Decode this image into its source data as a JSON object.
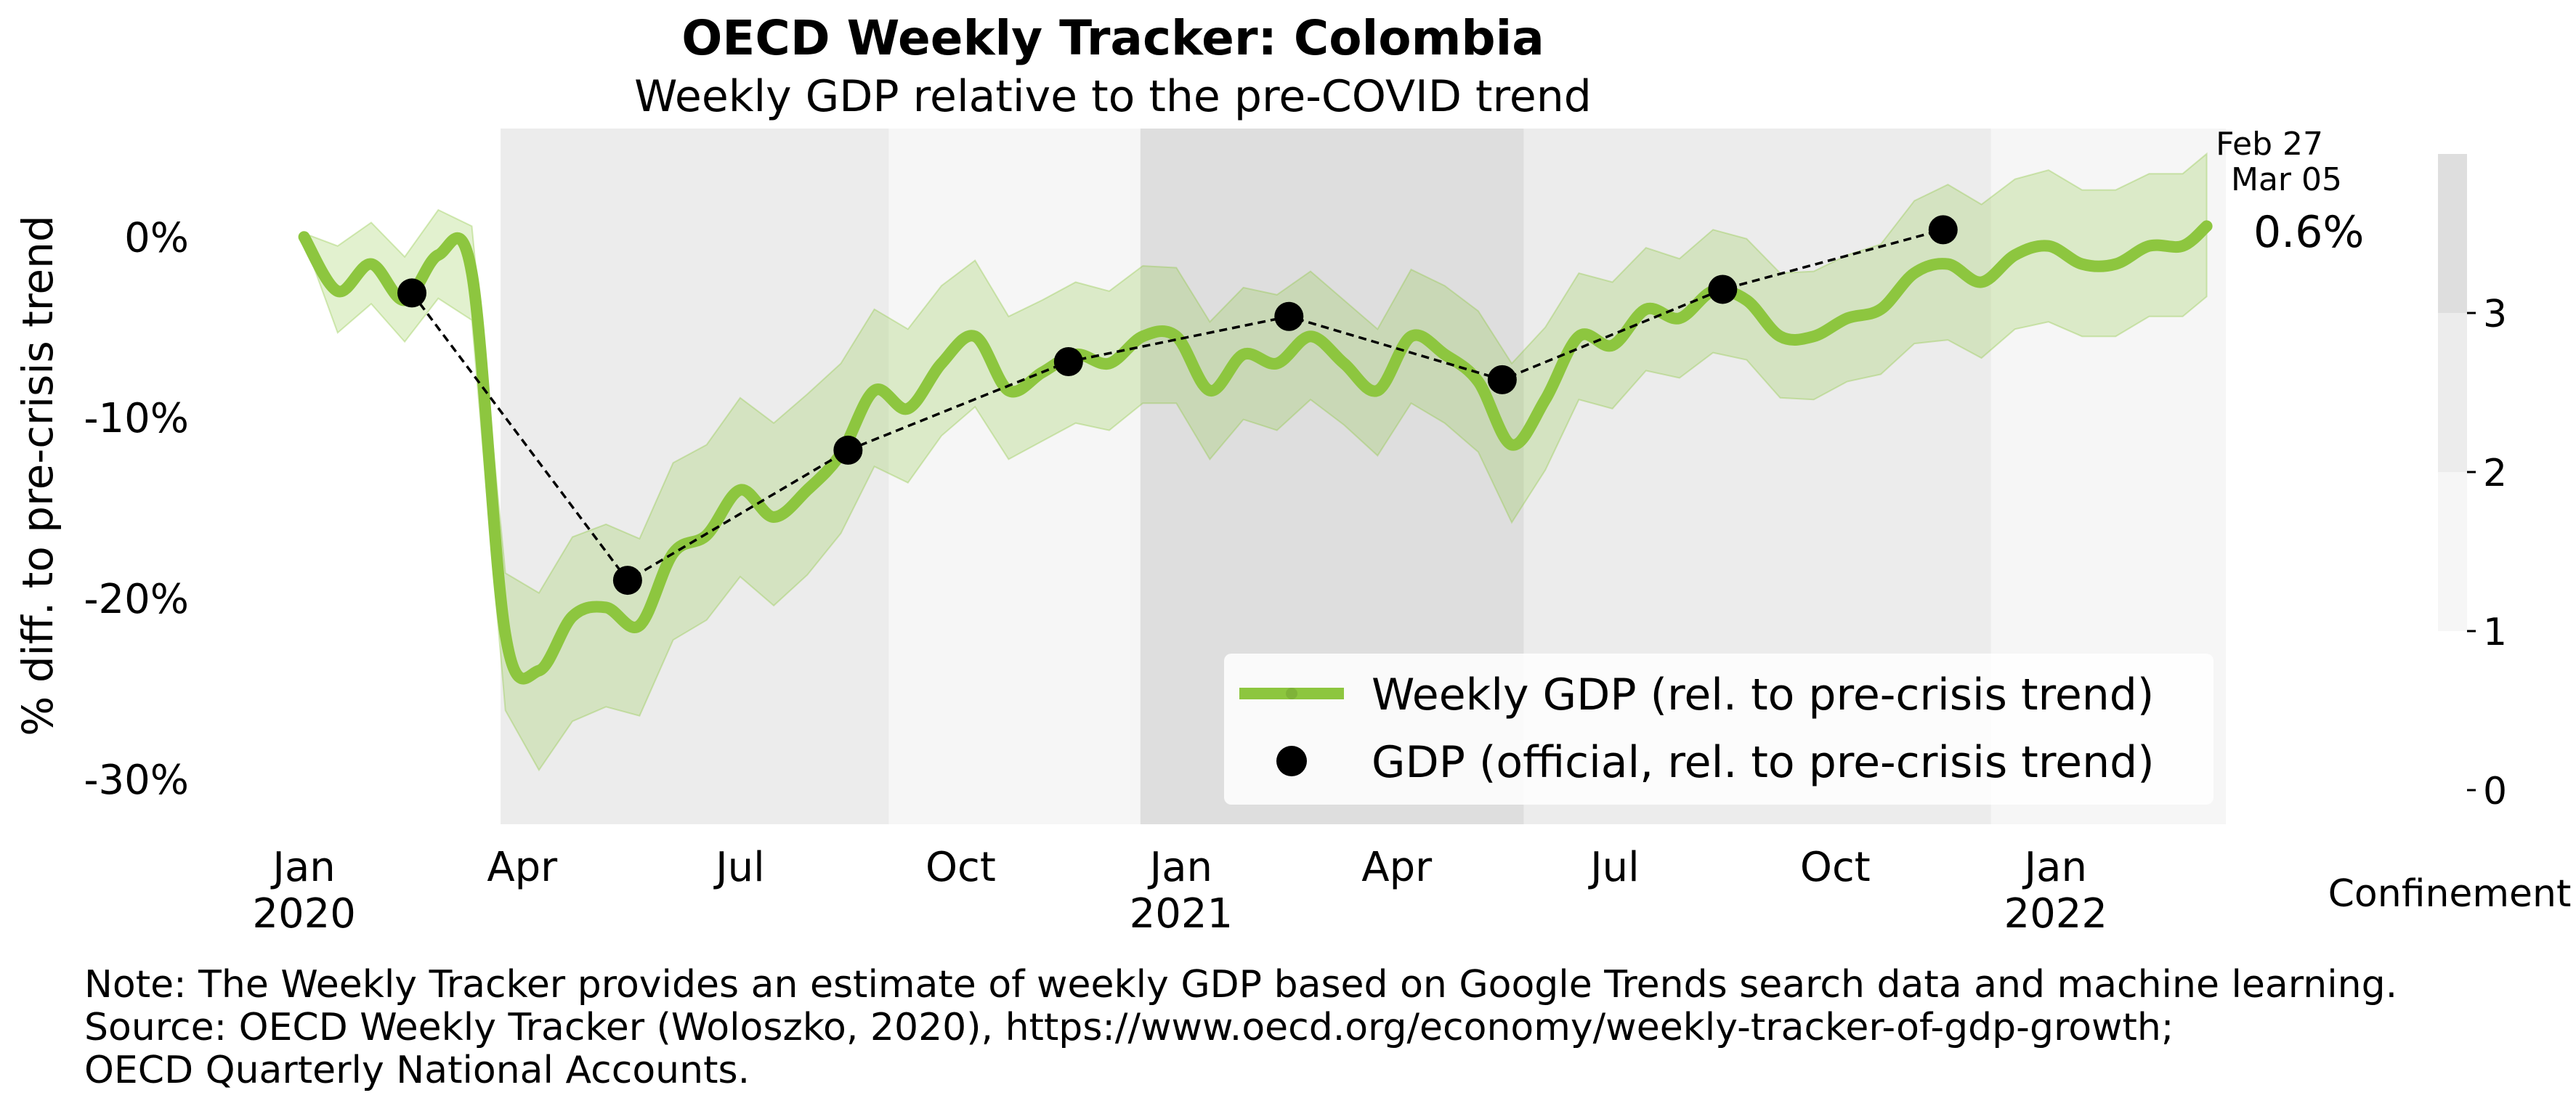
{
  "chart_data": {
    "type": "line",
    "title": "OECD Weekly Tracker: Colombia",
    "subtitle": "Weekly GDP relative to the pre-COVID trend",
    "ylabel": "% diff. to pre-crisis trend",
    "xlabel": "",
    "ylim": [
      -32.5,
      6
    ],
    "xlim": [
      "2019-12-30",
      "2022-03-13"
    ],
    "y_ticks": [
      {
        "value": 0,
        "label": "0%"
      },
      {
        "value": -10,
        "label": "-10%"
      },
      {
        "value": -20,
        "label": "-20%"
      },
      {
        "value": -30,
        "label": "-30%"
      }
    ],
    "x_ticks": [
      {
        "date": "2020-01-01",
        "line1": "Jan",
        "line2": "2020"
      },
      {
        "date": "2020-04-01",
        "line1": "Apr",
        "line2": ""
      },
      {
        "date": "2020-07-01",
        "line1": "Jul",
        "line2": ""
      },
      {
        "date": "2020-10-01",
        "line1": "Oct",
        "line2": ""
      },
      {
        "date": "2021-01-01",
        "line1": "Jan",
        "line2": "2021"
      },
      {
        "date": "2021-04-01",
        "line1": "Apr",
        "line2": ""
      },
      {
        "date": "2021-07-01",
        "line1": "Jul",
        "line2": ""
      },
      {
        "date": "2021-10-01",
        "line1": "Oct",
        "line2": ""
      },
      {
        "date": "2022-01-01",
        "line1": "Jan",
        "line2": "2022"
      }
    ],
    "series": [
      {
        "name": "Weekly GDP (rel. to pre-crisis trend)",
        "color": "#8dc63f",
        "x": [
          "2020-01-01",
          "2020-01-15",
          "2020-01-29",
          "2020-02-12",
          "2020-02-26",
          "2020-03-11",
          "2020-03-25",
          "2020-04-08",
          "2020-04-22",
          "2020-05-06",
          "2020-05-20",
          "2020-06-03",
          "2020-06-17",
          "2020-07-01",
          "2020-07-15",
          "2020-07-29",
          "2020-08-12",
          "2020-08-26",
          "2020-09-09",
          "2020-09-23",
          "2020-10-07",
          "2020-10-21",
          "2020-11-04",
          "2020-11-18",
          "2020-12-02",
          "2020-12-16",
          "2020-12-30",
          "2021-01-13",
          "2021-01-27",
          "2021-02-10",
          "2021-02-24",
          "2021-03-10",
          "2021-03-24",
          "2021-04-07",
          "2021-04-21",
          "2021-05-05",
          "2021-05-19",
          "2021-06-02",
          "2021-06-16",
          "2021-06-30",
          "2021-07-14",
          "2021-07-28",
          "2021-08-11",
          "2021-08-25",
          "2021-09-08",
          "2021-09-22",
          "2021-10-06",
          "2021-10-20",
          "2021-11-03",
          "2021-11-17",
          "2021-12-01",
          "2021-12-15",
          "2021-12-29",
          "2022-01-12",
          "2022-01-26",
          "2022-02-09",
          "2022-02-23",
          "2022-03-05"
        ],
        "values": [
          0.0,
          -3.0,
          -1.5,
          -3.5,
          -1.0,
          -2.0,
          -22.0,
          -24.0,
          -21.0,
          -20.5,
          -21.5,
          -17.5,
          -16.5,
          -14.0,
          -15.5,
          -14.0,
          -12.0,
          -8.5,
          -9.5,
          -7.0,
          -5.5,
          -8.5,
          -7.5,
          -6.5,
          -7.0,
          -5.5,
          -5.5,
          -8.5,
          -6.5,
          -7.0,
          -5.5,
          -7.0,
          -8.5,
          -5.5,
          -6.5,
          -8.0,
          -11.5,
          -9.0,
          -5.5,
          -6.0,
          -4.0,
          -4.5,
          -3.0,
          -3.5,
          -5.5,
          -5.5,
          -4.5,
          -4.0,
          -2.0,
          -1.5,
          -2.5,
          -1.0,
          -0.5,
          -1.5,
          -1.5,
          -0.5,
          -0.5,
          0.6
        ]
      },
      {
        "name": "GDP (official, rel. to pre-crisis trend)",
        "color": "#000000",
        "x": [
          "2020-02-15",
          "2020-05-15",
          "2020-08-15",
          "2020-11-15",
          "2021-02-15",
          "2021-05-15",
          "2021-08-15",
          "2021-11-15"
        ],
        "values": [
          -3.1,
          -19.0,
          -11.8,
          -6.9,
          -4.4,
          -7.9,
          -2.9,
          0.4
        ]
      }
    ],
    "confidence_band": {
      "offsets_upper": [
        0.2,
        2.5,
        2.3,
        2.4,
        2.5,
        2.6,
        3.4,
        4.3,
        4.4,
        4.6,
        4.8,
        5.0,
        5.0,
        5.1,
        5.2,
        5.3,
        5.0,
        4.5,
        4.4,
        4.3,
        4.2,
        4.1,
        4.0,
        4.0,
        4.0,
        3.9,
        3.8,
        3.8,
        3.7,
        3.8,
        3.6,
        3.5,
        3.4,
        3.7,
        3.8,
        3.9,
        4.5,
        4.0,
        3.5,
        3.5,
        3.4,
        3.3,
        3.4,
        3.4,
        3.5,
        3.6,
        3.5,
        3.6,
        4.0,
        4.4,
        4.3,
        4.2,
        4.2,
        4.1,
        4.1,
        4.0,
        4.0,
        4.0
      ],
      "offsets_lower": [
        0.2,
        2.3,
        2.2,
        2.3,
        2.4,
        2.6,
        4.2,
        5.5,
        5.8,
        5.5,
        5.0,
        4.8,
        4.7,
        4.8,
        4.9,
        4.7,
        4.4,
        4.2,
        4.1,
        4.0,
        3.9,
        3.8,
        3.8,
        3.8,
        3.7,
        3.7,
        3.7,
        3.8,
        3.6,
        3.7,
        3.5,
        3.4,
        3.6,
        3.7,
        3.8,
        3.9,
        4.3,
        3.9,
        3.5,
        3.5,
        3.4,
        3.3,
        3.4,
        3.3,
        3.4,
        3.5,
        3.5,
        3.6,
        3.9,
        4.2,
        4.2,
        4.1,
        4.2,
        4.0,
        4.0,
        3.9,
        3.9,
        3.9
      ]
    },
    "confinement_periods": [
      {
        "start": "2020-03-23",
        "end": "2020-09-01",
        "level": 2
      },
      {
        "start": "2020-09-01",
        "end": "2020-12-15",
        "level": 1
      },
      {
        "start": "2020-12-15",
        "end": "2021-05-24",
        "level": 3
      },
      {
        "start": "2021-05-24",
        "end": "2021-12-05",
        "level": 2
      },
      {
        "start": "2021-12-05",
        "end": "2022-03-13",
        "level": 1
      }
    ],
    "legend": {
      "placement": "lower-right"
    },
    "latest_label": {
      "value_text": "0.6%",
      "date_line1": "Feb 27",
      "date_line2": "Mar 05"
    },
    "colorbar": {
      "label": "Confinement",
      "ticks": [
        0,
        1,
        2,
        3
      ],
      "colors": [
        "#f6f6f6",
        "#ececec",
        "#dedede"
      ]
    },
    "note_lines": [
      "Note: The Weekly Tracker provides an estimate of weekly GDP based on Google Trends search data and machine learning.",
      "Source: OECD Weekly Tracker (Woloszko, 2020), https://www.oecd.org/economy/weekly-tracker-of-gdp-growth;",
      "OECD Quarterly National Accounts."
    ]
  }
}
